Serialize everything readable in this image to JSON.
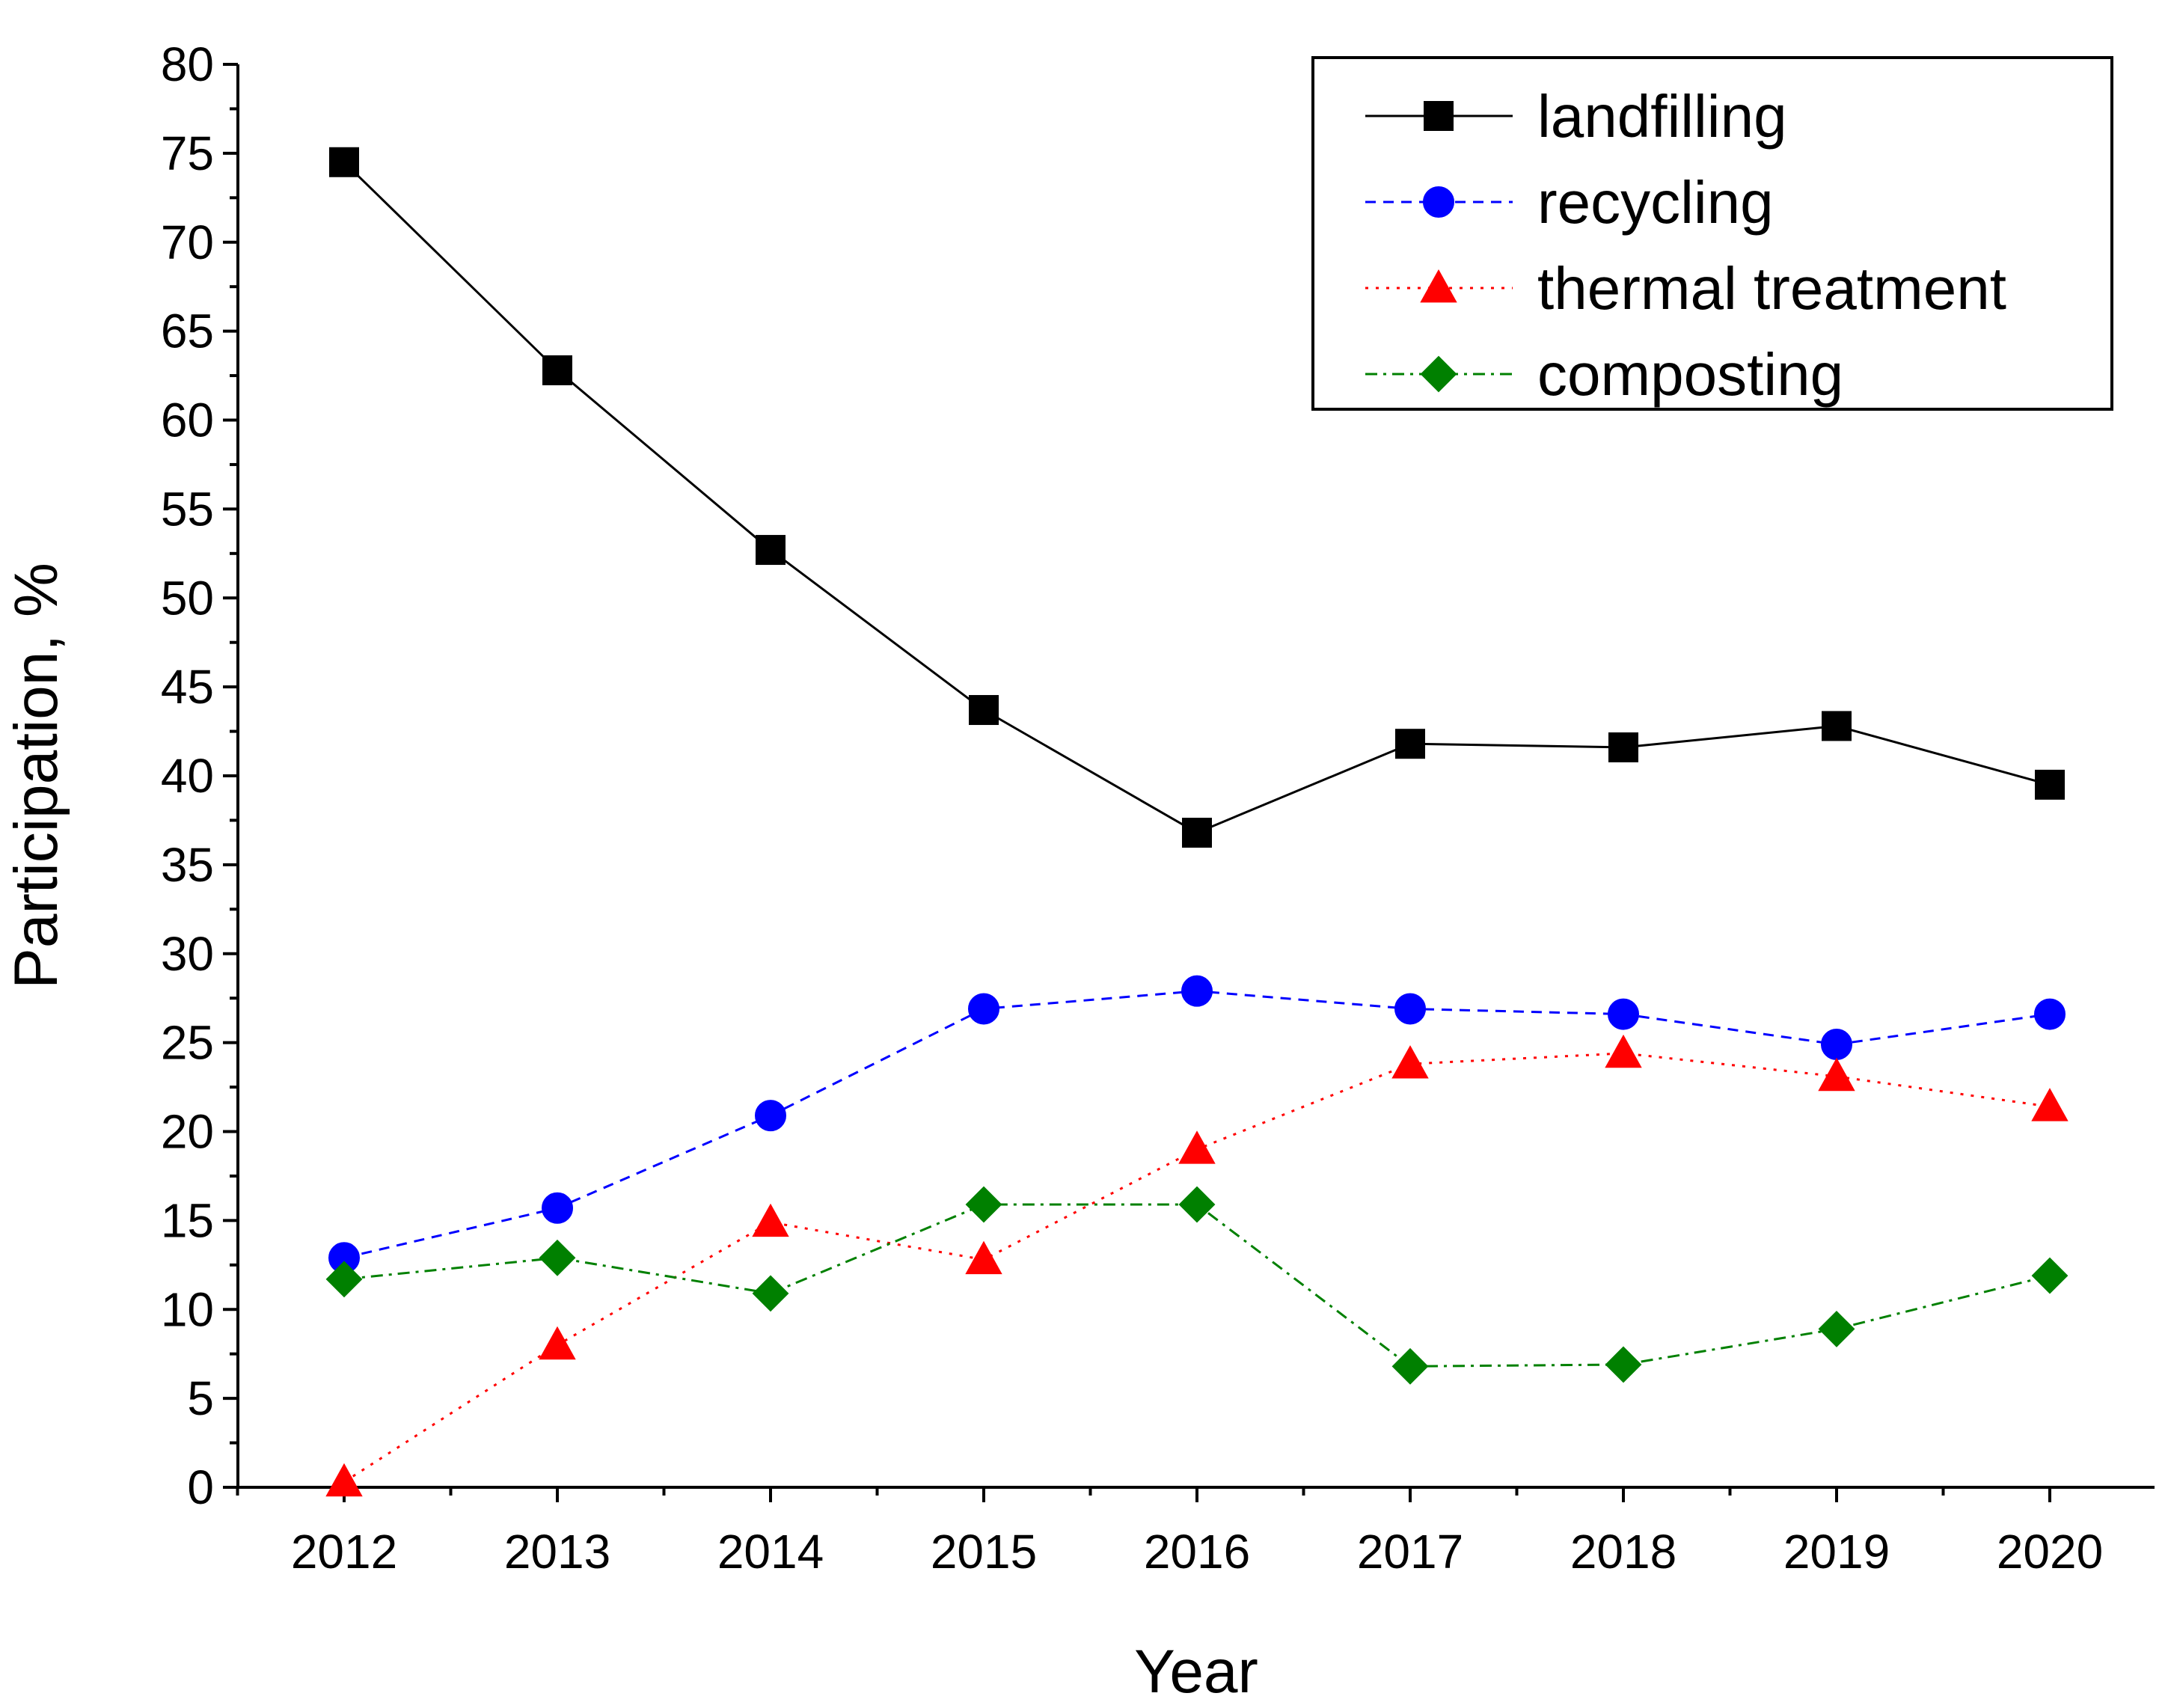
{
  "chart_data": {
    "type": "line",
    "title": "",
    "xlabel": "Year",
    "ylabel": "Participation, %",
    "ylim": [
      0,
      80
    ],
    "y_ticks": [
      0,
      5,
      10,
      15,
      20,
      25,
      30,
      35,
      40,
      45,
      50,
      55,
      60,
      65,
      70,
      75,
      80
    ],
    "categories": [
      "2012",
      "2013",
      "2014",
      "2015",
      "2016",
      "2017",
      "2018",
      "2019",
      "2020"
    ],
    "grid": false,
    "legend_position": "top-right",
    "series": [
      {
        "name": "landfilling",
        "color": "#000000",
        "line_style": "solid",
        "marker": "square",
        "values": [
          74.5,
          62.8,
          52.7,
          43.7,
          36.8,
          41.8,
          41.6,
          42.8,
          39.5
        ]
      },
      {
        "name": "recycling",
        "color": "#0000ff",
        "line_style": "dashed",
        "marker": "circle",
        "values": [
          12.9,
          15.7,
          20.9,
          26.9,
          27.9,
          26.9,
          26.6,
          24.9,
          26.6
        ]
      },
      {
        "name": "thermal treatment",
        "color": "#ff0000",
        "line_style": "dotted",
        "marker": "triangle",
        "values": [
          0.3,
          8.0,
          14.9,
          12.8,
          19.0,
          23.8,
          24.4,
          23.1,
          21.4
        ]
      },
      {
        "name": "composting",
        "color": "#008000",
        "line_style": "dash-dot",
        "marker": "diamond",
        "values": [
          11.7,
          12.9,
          10.9,
          15.9,
          15.9,
          6.8,
          6.9,
          8.9,
          11.9
        ]
      }
    ]
  }
}
